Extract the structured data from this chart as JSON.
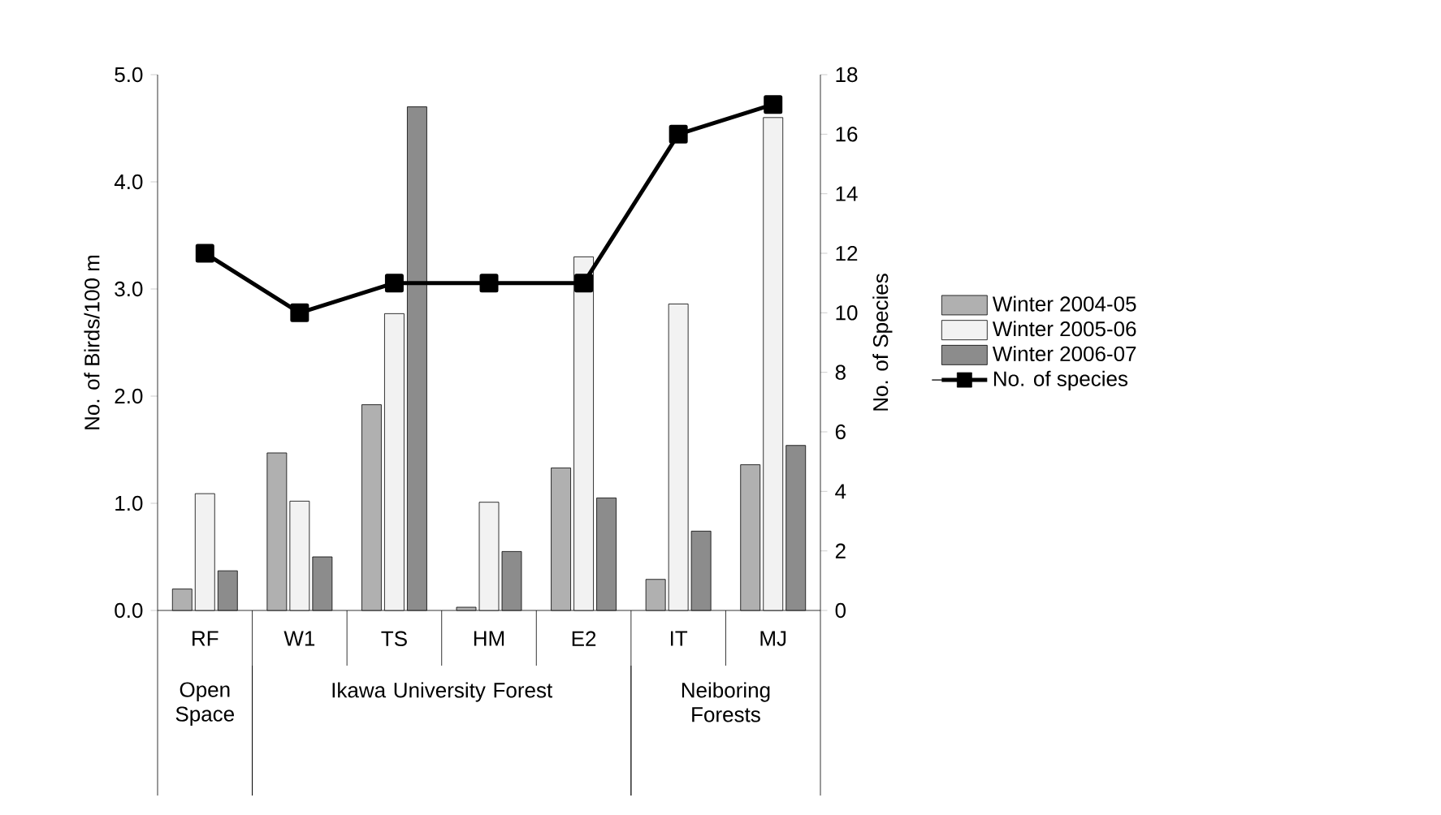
{
  "chart_data": {
    "type": "bar",
    "categories": [
      "RF",
      "W1",
      "TS",
      "HM",
      "E2",
      "IT",
      "MJ"
    ],
    "series": [
      {
        "name": "Winter 2004-05",
        "color": "#b0b0b0",
        "values": [
          0.2,
          1.47,
          1.92,
          0.03,
          1.33,
          0.29,
          1.36
        ]
      },
      {
        "name": "Winter 2005-06",
        "color": "#f2f2f2",
        "values": [
          1.09,
          1.02,
          2.77,
          1.01,
          3.3,
          2.86,
          4.6
        ]
      },
      {
        "name": "Winter 2006-07",
        "color": "#8c8c8c",
        "values": [
          0.37,
          0.5,
          4.7,
          0.55,
          1.05,
          0.74,
          1.54
        ]
      },
      {
        "name": "No. of species",
        "type": "line",
        "axis": "y2",
        "color": "#000000",
        "marker": "square",
        "values": [
          12,
          10,
          11,
          11,
          11,
          16,
          17
        ]
      }
    ],
    "ylabel": "No. of Birds/100 m",
    "y2label": "No. of Species",
    "ylim": [
      0,
      5
    ],
    "yticks": [
      {
        "value": 0,
        "label": "0.0"
      },
      {
        "value": 1,
        "label": "1.0"
      },
      {
        "value": 2,
        "label": "2.0"
      },
      {
        "value": 3,
        "label": "3.0"
      },
      {
        "value": 4,
        "label": "4.0"
      },
      {
        "value": 5,
        "label": "5.0"
      }
    ],
    "y2lim": [
      0,
      18
    ],
    "y2ticks": [
      0,
      2,
      4,
      6,
      8,
      10,
      12,
      14,
      16,
      18
    ],
    "legend": "right",
    "annotations": [
      "Open Space",
      "Ikawa University Forest",
      "Neiboring Forests"
    ]
  }
}
